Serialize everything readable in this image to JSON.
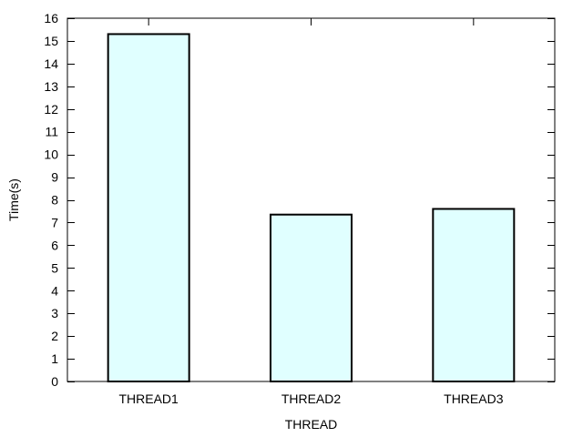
{
  "chart_data": {
    "type": "bar",
    "categories": [
      "THREAD1",
      "THREAD2",
      "THREAD3"
    ],
    "values": [
      15.3,
      7.35,
      7.6
    ],
    "xlabel": "THREAD",
    "ylabel": "Time(s)",
    "ylim": [
      0,
      16
    ],
    "yticks": [
      0,
      1,
      2,
      3,
      4,
      5,
      6,
      7,
      8,
      9,
      10,
      11,
      12,
      13,
      14,
      15,
      16
    ],
    "grid": false,
    "legend": "none",
    "colors": {
      "bar_fill": "#e0ffff",
      "bar_stroke": "#000000",
      "axis": "#000000"
    }
  }
}
